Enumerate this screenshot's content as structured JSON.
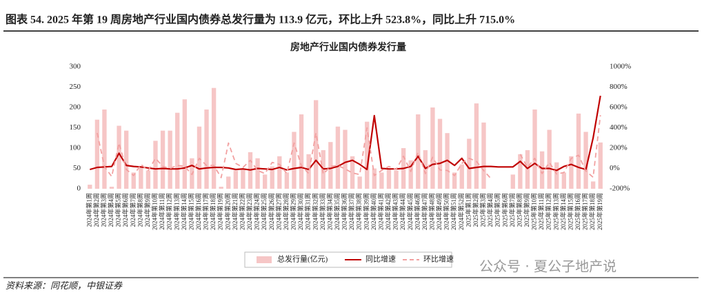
{
  "header": {
    "title": "图表 54. 2025 年第 19 周房地产行业国内债券总发行量为 113.9 亿元，环比上升 523.8%，同比上升 715.0%"
  },
  "chart_data": {
    "type": "bar-line",
    "title": "房地产行业国内债券发行量",
    "categories": [
      "2024年第1周",
      "2024年第2周",
      "2024年第3周",
      "2024年第4周",
      "2024年第5周",
      "2024年第6周",
      "2024年第7周",
      "2024年第8周",
      "2024年第9周",
      "2024年第10周",
      "2024年第11周",
      "2024年第12周",
      "2024年第13周",
      "2024年第14周",
      "2024年第15周",
      "2024年第16周",
      "2024年第17周",
      "2024年第18周",
      "2024年第19周",
      "2024年第20周",
      "2024年第21周",
      "2024年第22周",
      "2024年第23周",
      "2024年第24周",
      "2024年第25周",
      "2024年第26周",
      "2024年第27周",
      "2024年第28周",
      "2024年第29周",
      "2024年第30周",
      "2024年第31周",
      "2024年第32周",
      "2024年第33周",
      "2024年第34周",
      "2024年第35周",
      "2024年第36周",
      "2024年第37周",
      "2024年第38周",
      "2024年第39周",
      "2024年第40周",
      "2024年第41周",
      "2024年第42周",
      "2024年第43周",
      "2024年第44周",
      "2024年第45周",
      "2024年第46周",
      "2024年第47周",
      "2024年第48周",
      "2024年第49周",
      "2024年第50周",
      "2024年第51周",
      "2024年第52周",
      "2025年第1周",
      "2025年第2周",
      "2025年第3周",
      "2025年第4周",
      "2025年第5周",
      "2025年第6周",
      "2025年第7周",
      "2025年第8周",
      "2025年第9周",
      "2025年第10周",
      "2025年第11周",
      "2025年第12周",
      "2025年第13周",
      "2025年第14周",
      "2025年第15周",
      "2025年第16周",
      "2025年第17周",
      "2025年第18周",
      "2025年第19周"
    ],
    "series": [
      {
        "name": "总发行量(亿元)",
        "type": "bar",
        "color": "#f6c6c6",
        "values": [
          10,
          170,
          195,
          5,
          155,
          143,
          40,
          55,
          45,
          118,
          143,
          143,
          187,
          220,
          75,
          153,
          195,
          248,
          5,
          30,
          45,
          50,
          90,
          75,
          35,
          55,
          80,
          40,
          140,
          183,
          85,
          218,
          95,
          115,
          153,
          145,
          80,
          30,
          165,
          50,
          40,
          50,
          45,
          100,
          70,
          183,
          95,
          200,
          172,
          137,
          40,
          60,
          123,
          210,
          163,
          0,
          0,
          0,
          35,
          85,
          95,
          195,
          92,
          145,
          65,
          40,
          80,
          185,
          140,
          18,
          113.9
        ]
      },
      {
        "name": "同比增速",
        "type": "line",
        "axis": "y2",
        "color": "#c00000",
        "dash": false,
        "values": [
          -10,
          10,
          15,
          20,
          150,
          30,
          20,
          15,
          5,
          -5,
          0,
          -5,
          -5,
          5,
          30,
          -5,
          5,
          10,
          10,
          5,
          -10,
          -5,
          -15,
          0,
          -5,
          -10,
          10,
          -15,
          0,
          10,
          -10,
          80,
          -5,
          0,
          20,
          60,
          80,
          40,
          -10,
          520,
          0,
          -5,
          -5,
          0,
          20,
          120,
          0,
          40,
          50,
          80,
          30,
          100,
          0,
          10,
          20,
          20,
          15,
          15,
          15,
          70,
          0,
          50,
          0,
          0,
          -20,
          20,
          40,
          10,
          -10,
          300,
          715
        ]
      },
      {
        "name": "环比增速",
        "type": "line",
        "axis": "y2",
        "color": "#f2a0a0",
        "dash": true,
        "values": [
          null,
          350,
          20,
          -80,
          250,
          -10,
          -70,
          40,
          -20,
          100,
          20,
          0,
          30,
          20,
          -60,
          100,
          30,
          30,
          -90,
          250,
          50,
          10,
          80,
          -20,
          -50,
          60,
          40,
          -50,
          250,
          30,
          -50,
          350,
          -55,
          20,
          30,
          -5,
          -45,
          -60,
          400,
          -70,
          -20,
          20,
          -10,
          120,
          -30,
          160,
          -50,
          110,
          -15,
          -20,
          -70,
          50,
          100,
          70,
          -22,
          -100,
          null,
          null,
          null,
          140,
          10,
          100,
          -50,
          60,
          -55,
          -40,
          100,
          130,
          -25,
          -87,
          523.8
        ]
      }
    ],
    "ylim": [
      0,
      300
    ],
    "yticks": [
      0,
      50,
      100,
      150,
      200,
      250,
      300
    ],
    "y2lim": [
      -200,
      1000
    ],
    "y2ticks": [
      {
        "value": -200,
        "label": "-200%"
      },
      {
        "value": 0,
        "label": "0%"
      },
      {
        "value": 200,
        "label": "200%"
      },
      {
        "value": 400,
        "label": "400%"
      },
      {
        "value": 600,
        "label": "600%"
      },
      {
        "value": 800,
        "label": "800%"
      },
      {
        "value": 1000,
        "label": "1000%"
      }
    ],
    "grid": false
  },
  "source": "资料来源：同花顺，中银证券",
  "watermark": "公众号 · 夏公子地产说"
}
